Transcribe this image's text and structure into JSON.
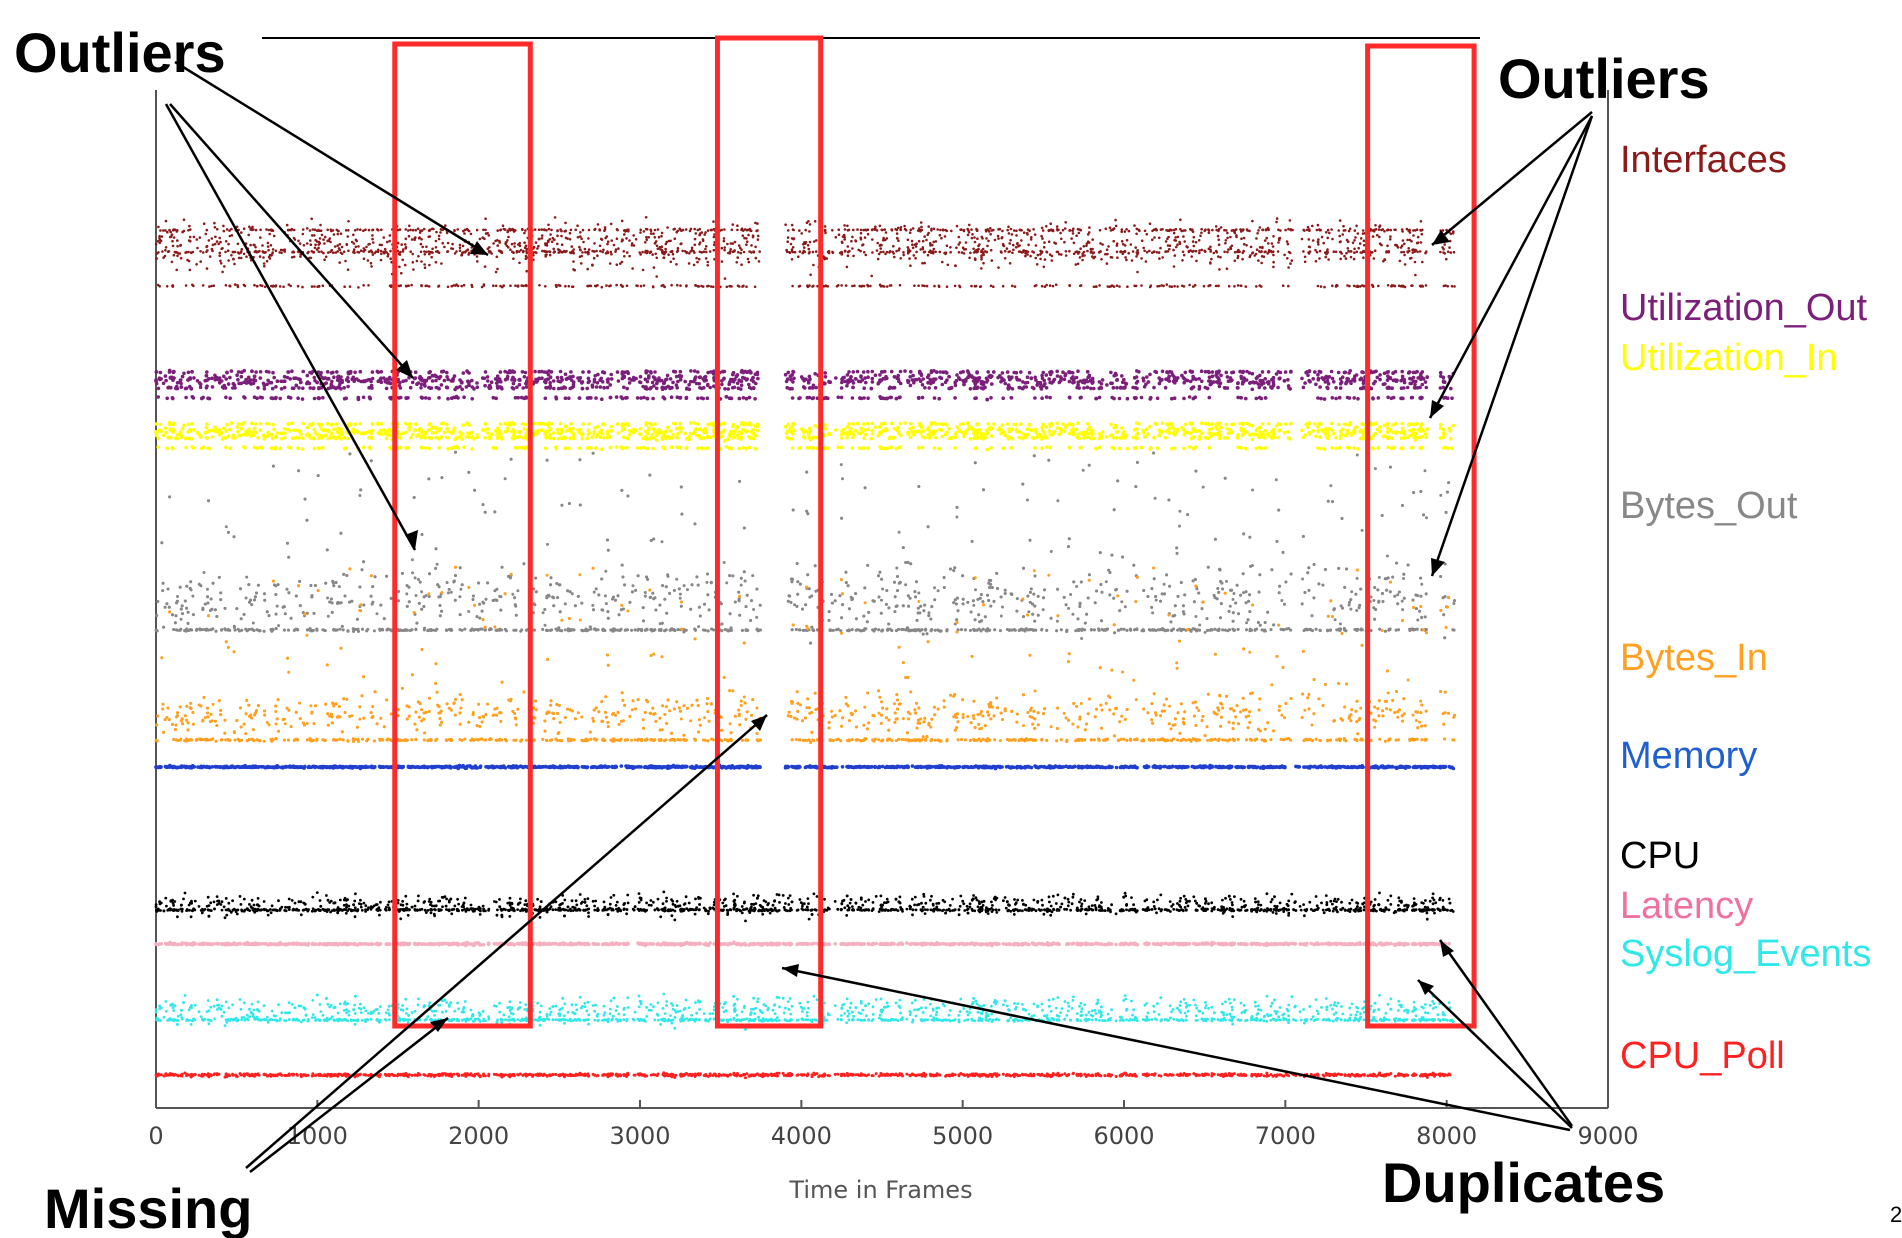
{
  "chart_data": {
    "type": "scatter",
    "title": "",
    "xlabel": "Time in Frames",
    "ylabel": "",
    "xlim": [
      0,
      9000
    ],
    "xticks": [
      0,
      1000,
      2000,
      3000,
      4000,
      5000,
      6000,
      7000,
      8000,
      9000
    ],
    "grid": false,
    "legend_placement": "right",
    "series": [
      {
        "name": "Interfaces",
        "color": "#8b1a1a",
        "active_ranges": [
          [
            0,
            3750
          ],
          [
            3900,
            7050
          ],
          [
            7100,
            7880
          ],
          [
            7960,
            8050
          ]
        ]
      },
      {
        "name": "Utilization_Out",
        "color": "#7b1f7b",
        "active_ranges": [
          [
            0,
            3750
          ],
          [
            3900,
            7050
          ],
          [
            7100,
            7880
          ],
          [
            7960,
            8050
          ]
        ]
      },
      {
        "name": "Utilization_In",
        "color": "#ffff00",
        "active_ranges": [
          [
            0,
            3750
          ],
          [
            3900,
            7050
          ],
          [
            7100,
            7880
          ],
          [
            7960,
            8050
          ]
        ]
      },
      {
        "name": "Bytes_Out",
        "color": "#888888",
        "active_ranges": [
          [
            0,
            3750
          ],
          [
            3900,
            7050
          ],
          [
            7100,
            7880
          ],
          [
            7960,
            8050
          ]
        ]
      },
      {
        "name": "Bytes_In",
        "color": "#ffa020",
        "active_ranges": [
          [
            0,
            3750
          ],
          [
            3900,
            7050
          ],
          [
            7100,
            7880
          ],
          [
            7960,
            8050
          ]
        ]
      },
      {
        "name": "Memory",
        "color": "#1f3fd0",
        "active_ranges": [
          [
            0,
            3750
          ],
          [
            3900,
            7000
          ],
          [
            7050,
            8050
          ]
        ]
      },
      {
        "name": "CPU",
        "color": "#000000",
        "active_ranges": [
          [
            0,
            8050
          ]
        ]
      },
      {
        "name": "Latency",
        "color": "#f4b0c0",
        "active_ranges": [
          [
            0,
            8050
          ]
        ]
      },
      {
        "name": "Syslog_Events",
        "color": "#30e8e8",
        "active_ranges": [
          [
            0,
            8050
          ]
        ]
      },
      {
        "name": "CPU_Poll",
        "color": "#ff2020",
        "active_ranges": [
          [
            0,
            8050
          ]
        ]
      }
    ],
    "highlight_boxes": [
      {
        "x_range": [
          1480,
          2320
        ]
      },
      {
        "x_range": [
          3480,
          4120
        ]
      },
      {
        "x_range": [
          7510,
          8170
        ]
      }
    ],
    "annotations": [
      {
        "text": "Outliers"
      },
      {
        "text": "Outliers"
      },
      {
        "text": "Missing"
      },
      {
        "text": "Duplicates"
      }
    ]
  },
  "page_number": "2"
}
